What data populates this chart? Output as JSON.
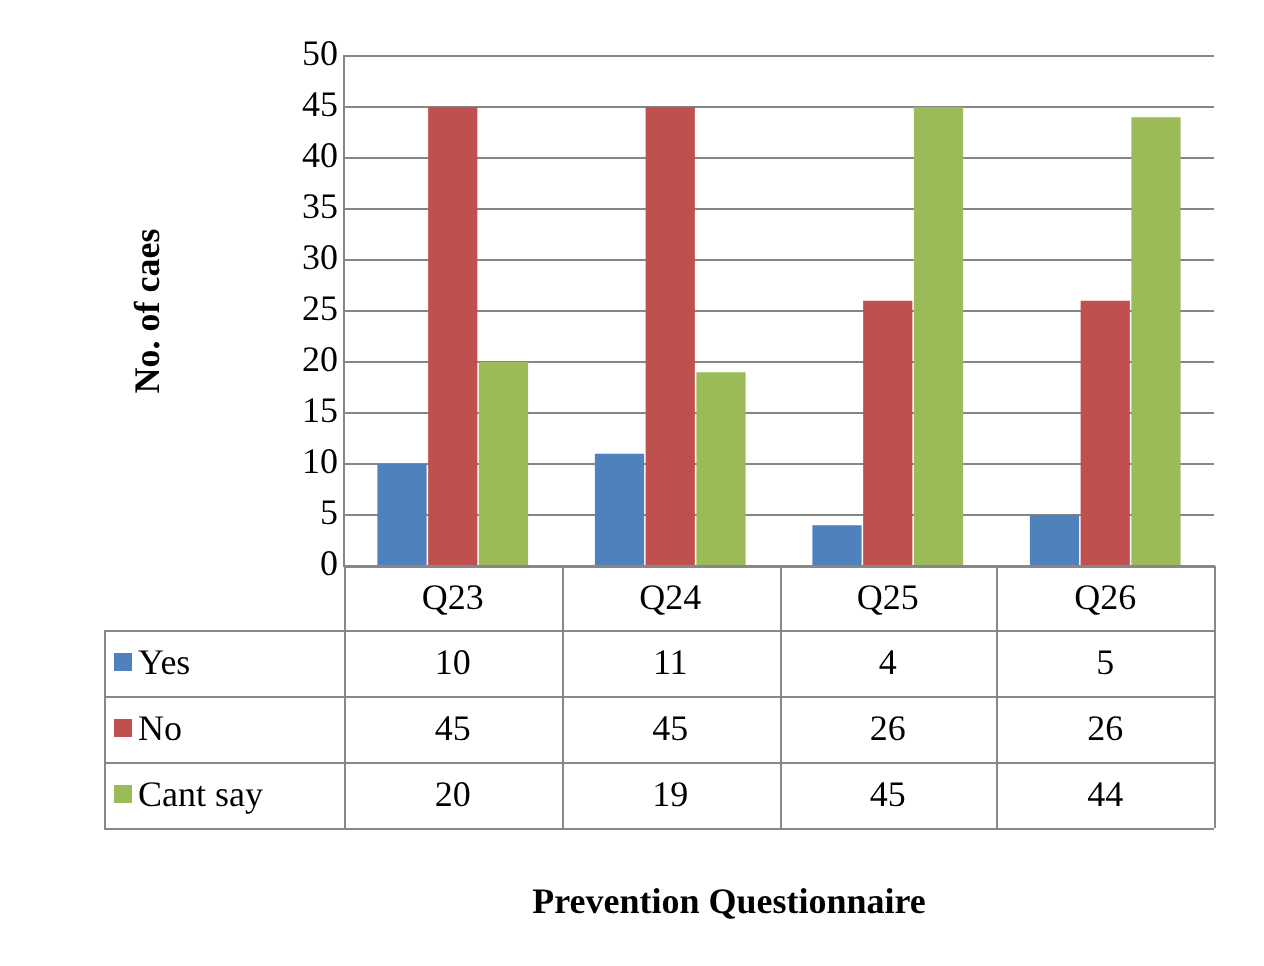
{
  "chart_data": {
    "type": "bar",
    "annotations": [
      "Prevention Questionnaire"
    ],
    "ylabel": "No. of caes",
    "categories": [
      "Q23",
      "Q24",
      "Q25",
      "Q26"
    ],
    "series": [
      {
        "name": "Yes",
        "color": "#4f81bd",
        "values": [
          10,
          11,
          4,
          5
        ]
      },
      {
        "name": "No",
        "color": "#c0504d",
        "values": [
          45,
          45,
          26,
          26
        ]
      },
      {
        "name": "Cant say",
        "color": "#9bbb59",
        "values": [
          20,
          19,
          45,
          44
        ]
      }
    ],
    "ylim": [
      0,
      50
    ],
    "yticks": [
      0,
      5,
      10,
      15,
      20,
      25,
      30,
      35,
      40,
      45,
      50
    ],
    "grid": "y",
    "legend": "bottom",
    "data_labels": true
  }
}
